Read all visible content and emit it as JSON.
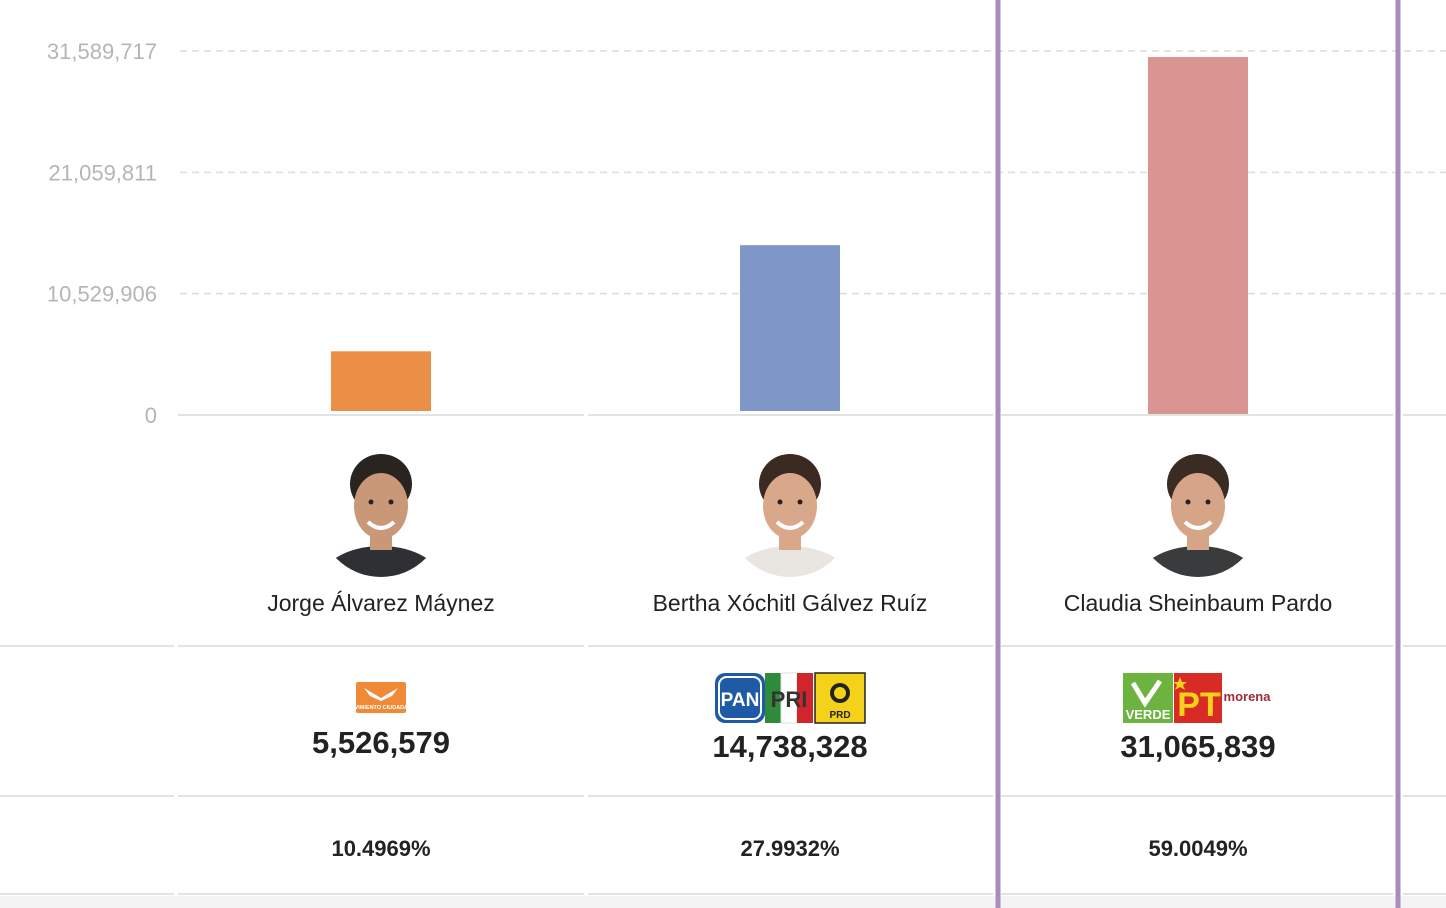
{
  "chart_data": {
    "type": "bar",
    "ylim": [
      0,
      31589717
    ],
    "y_ticks": [
      {
        "value": 0,
        "label": "0"
      },
      {
        "value": 10529906,
        "label": "10,529,906"
      },
      {
        "value": 21059811,
        "label": "21,059,811"
      },
      {
        "value": 31589717,
        "label": "31,589,717"
      }
    ],
    "grid": true,
    "highlighted_index": 2,
    "categories": [
      "Jorge Álvarez Máynez",
      "Bertha Xóchitl Gálvez Ruíz",
      "Claudia Sheinbaum Pardo"
    ],
    "values": [
      5526579,
      14738328,
      31065839
    ],
    "votes_labels": [
      "5,526,579",
      "14,738,328",
      "31,065,839"
    ],
    "percentages": [
      "10.4969%",
      "27.9932%",
      "59.0049%"
    ],
    "colors": [
      "#ea8f45",
      "#7e97c7",
      "#d99592"
    ]
  },
  "party_logos": [
    [
      {
        "name": "movimiento-ciudadano-logo",
        "text": "MOVIMIENTO CIUDADANO",
        "color": "#f08a36"
      }
    ],
    [
      {
        "name": "pan-logo",
        "text": "PAN",
        "color": "#1f5aa6"
      },
      {
        "name": "pri-logo",
        "text": "PRI",
        "color": "#2e8b3a"
      },
      {
        "name": "prd-logo",
        "text": "PRD",
        "color": "#f5d21a"
      }
    ],
    [
      {
        "name": "verde-logo",
        "text": "VERDE",
        "color": "#6cb33f"
      },
      {
        "name": "pt-logo",
        "text": "PT",
        "color": "#d92b26"
      },
      {
        "name": "morena-logo",
        "text": "morena",
        "color": "#a12a3a"
      }
    ]
  ],
  "highlight_color": "#a98bbf"
}
